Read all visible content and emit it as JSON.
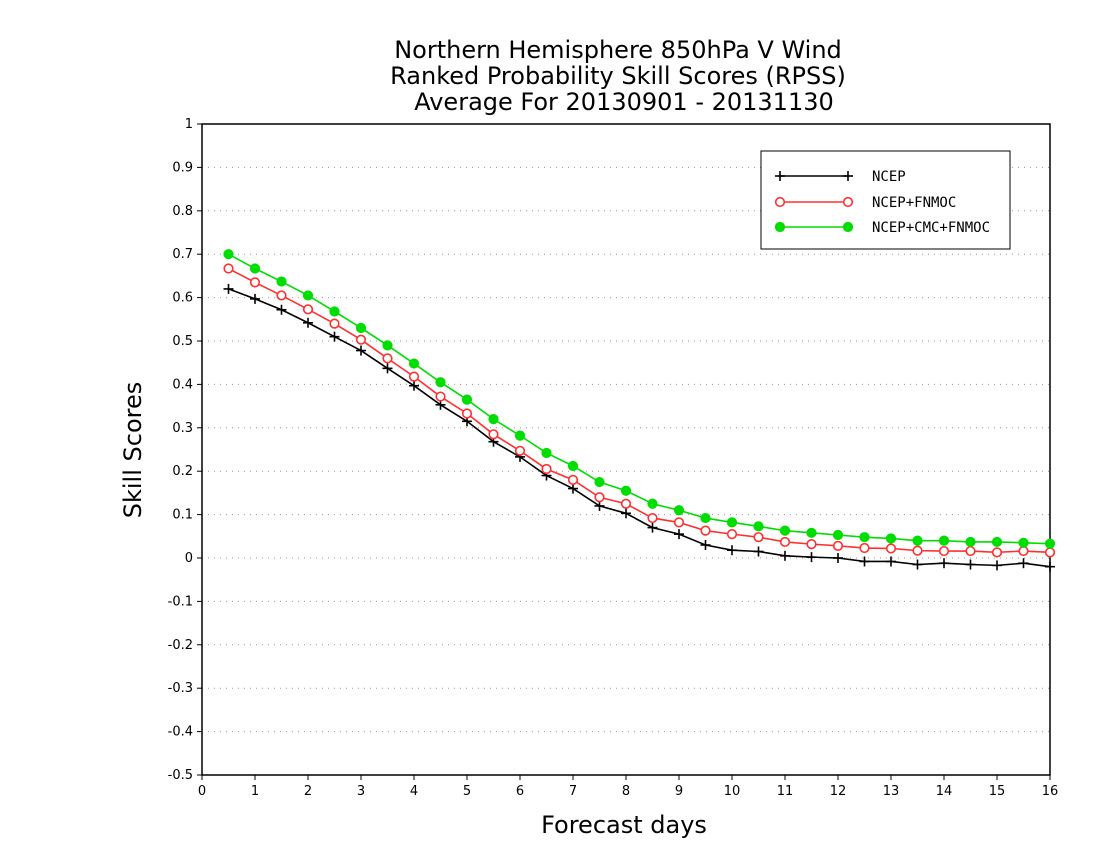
{
  "chart_data": {
    "type": "line",
    "title": [
      "Northern Hemisphere 850hPa V Wind",
      "Ranked Probability Skill Scores (RPSS)",
      "Average For 20130901 - 20131130"
    ],
    "xlabel": "Forecast days",
    "ylabel": "Skill Scores",
    "xlim": [
      0,
      16
    ],
    "ylim": [
      -0.5,
      1
    ],
    "xticks": [
      "0",
      "1",
      "2",
      "3",
      "4",
      "5",
      "6",
      "7",
      "8",
      "9",
      "10",
      "11",
      "12",
      "13",
      "14",
      "15",
      "16"
    ],
    "yticks": [
      "1",
      "0.9",
      "0.8",
      "0.7",
      "0.6",
      "0.5",
      "0.4",
      "0.3",
      "0.2",
      "0.1",
      "0",
      "-0.1",
      "-0.2",
      "-0.3",
      "-0.4",
      "-0.5"
    ],
    "grid": "horizontal-dotted",
    "legend_position": "top-right",
    "x": [
      0.5,
      1,
      1.5,
      2,
      2.5,
      3,
      3.5,
      4,
      4.5,
      5,
      5.5,
      6,
      6.5,
      7,
      7.5,
      8,
      8.5,
      9,
      9.5,
      10,
      10.5,
      11,
      11.5,
      12,
      12.5,
      13,
      13.5,
      14,
      14.5,
      15,
      15.5,
      16
    ],
    "series": [
      {
        "name": "NCEP",
        "color": "#000000",
        "marker": "plus",
        "values": [
          0.62,
          0.597,
          0.572,
          0.542,
          0.51,
          0.478,
          0.437,
          0.397,
          0.353,
          0.315,
          0.268,
          0.233,
          0.19,
          0.16,
          0.12,
          0.103,
          0.07,
          0.055,
          0.03,
          0.018,
          0.015,
          0.005,
          0.002,
          0.0,
          -0.008,
          -0.008,
          -0.015,
          -0.012,
          -0.015,
          -0.017,
          -0.012,
          -0.02
        ]
      },
      {
        "name": "NCEP+FNMOC",
        "color": "#ff3030",
        "marker": "open-circle",
        "values": [
          0.667,
          0.635,
          0.605,
          0.573,
          0.54,
          0.503,
          0.46,
          0.418,
          0.372,
          0.333,
          0.285,
          0.247,
          0.205,
          0.18,
          0.14,
          0.125,
          0.092,
          0.082,
          0.063,
          0.055,
          0.048,
          0.037,
          0.032,
          0.028,
          0.023,
          0.022,
          0.017,
          0.016,
          0.016,
          0.013,
          0.016,
          0.013
        ]
      },
      {
        "name": "NCEP+CMC+FNMOC",
        "color": "#00dd00",
        "marker": "filled-circle",
        "values": [
          0.7,
          0.667,
          0.637,
          0.605,
          0.568,
          0.53,
          0.49,
          0.448,
          0.405,
          0.365,
          0.32,
          0.282,
          0.242,
          0.212,
          0.175,
          0.155,
          0.125,
          0.11,
          0.092,
          0.082,
          0.073,
          0.063,
          0.058,
          0.053,
          0.048,
          0.045,
          0.04,
          0.04,
          0.037,
          0.037,
          0.035,
          0.033
        ]
      }
    ]
  }
}
